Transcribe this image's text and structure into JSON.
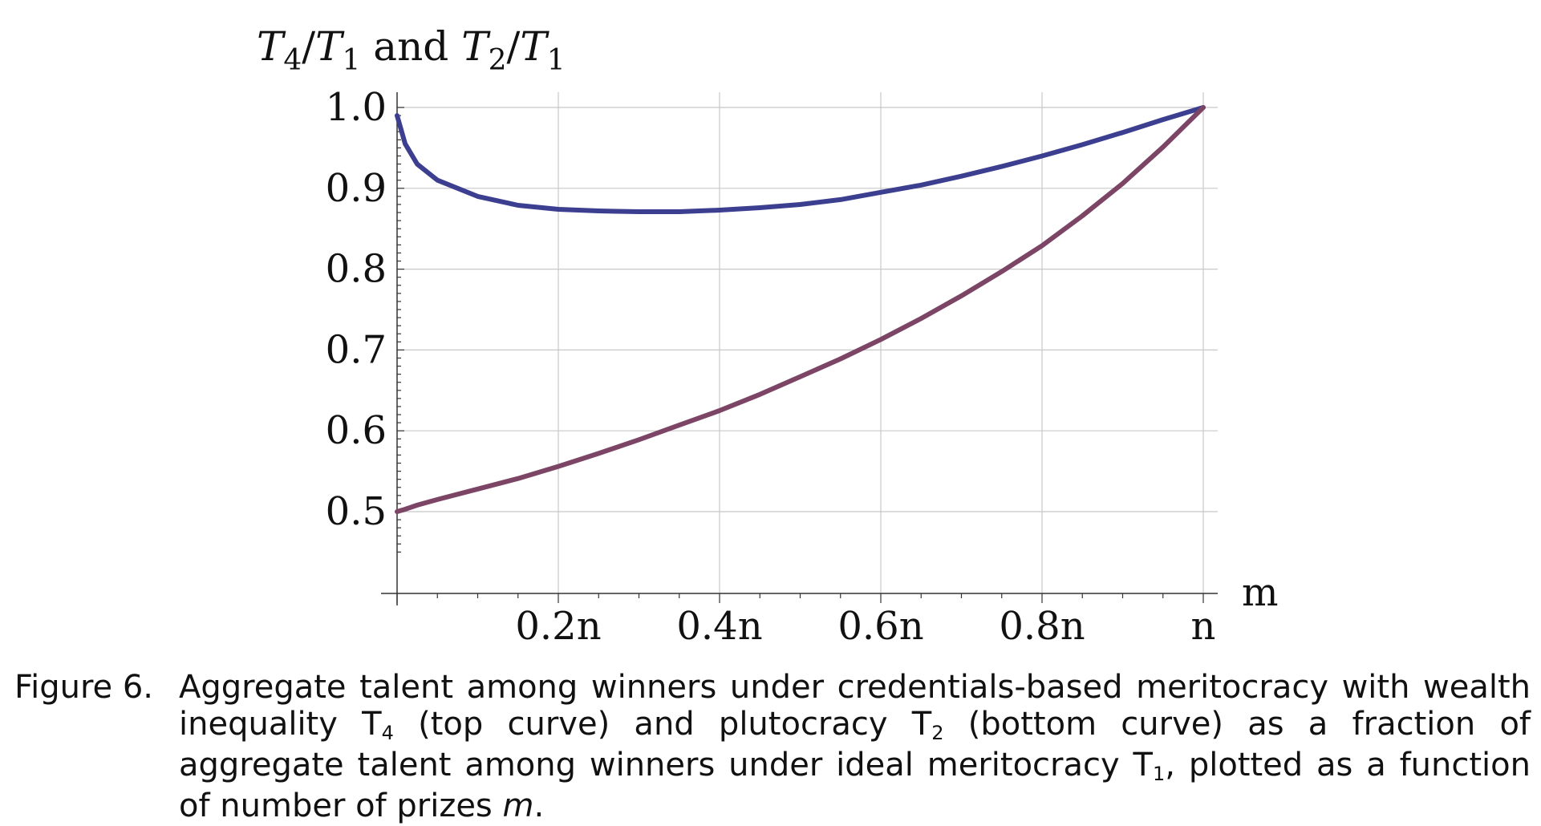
{
  "chart_data": {
    "type": "line",
    "ylabel": "T4/T1 and T2/T1",
    "xlabel": "m",
    "x_tick_labels": [
      "0.2n",
      "0.4n",
      "0.6n",
      "0.8n",
      "n"
    ],
    "x_tick_values": [
      0.2,
      0.4,
      0.6,
      0.8,
      1.0
    ],
    "y_tick_labels": [
      "0.5",
      "0.6",
      "0.7",
      "0.8",
      "0.9",
      "1.0"
    ],
    "y_tick_values": [
      0.5,
      0.6,
      0.7,
      0.8,
      0.9,
      1.0
    ],
    "xlim": [
      0,
      1.0
    ],
    "ylim": [
      0.4,
      1.0
    ],
    "grid": true,
    "x": [
      0.0,
      0.01,
      0.025,
      0.05,
      0.1,
      0.15,
      0.2,
      0.25,
      0.3,
      0.35,
      0.4,
      0.45,
      0.5,
      0.55,
      0.6,
      0.65,
      0.7,
      0.75,
      0.8,
      0.85,
      0.9,
      0.95,
      1.0
    ],
    "series": [
      {
        "color": "#3c3f8f",
        "values": [
          0.99,
          0.955,
          0.93,
          0.91,
          0.89,
          0.879,
          0.874,
          0.872,
          0.871,
          0.871,
          0.873,
          0.876,
          0.88,
          0.886,
          0.895,
          0.904,
          0.915,
          0.927,
          0.94,
          0.954,
          0.969,
          0.985,
          1.0
        ]
      },
      {
        "color": "#7c4566",
        "values": [
          0.5,
          0.503,
          0.508,
          0.515,
          0.528,
          0.541,
          0.556,
          0.572,
          0.589,
          0.607,
          0.625,
          0.645,
          0.667,
          0.689,
          0.713,
          0.739,
          0.767,
          0.797,
          0.829,
          0.866,
          0.906,
          0.951,
          1.0
        ]
      }
    ]
  },
  "caption": {
    "label": "Figure 6.",
    "text_1": "Aggregate talent among winners under credentials-based meritocracy with wealth inequality T",
    "sub_4": "4",
    "text_2": " (top curve) and plutocracy T",
    "sub_2": "2",
    "text_3": " (bottom curve) as a fraction of aggregate talent among winners under ideal meritocracy T",
    "sub_1": "1",
    "text_4": ", plotted as a function of number of prizes ",
    "italic_m": "m",
    "text_5": "."
  }
}
